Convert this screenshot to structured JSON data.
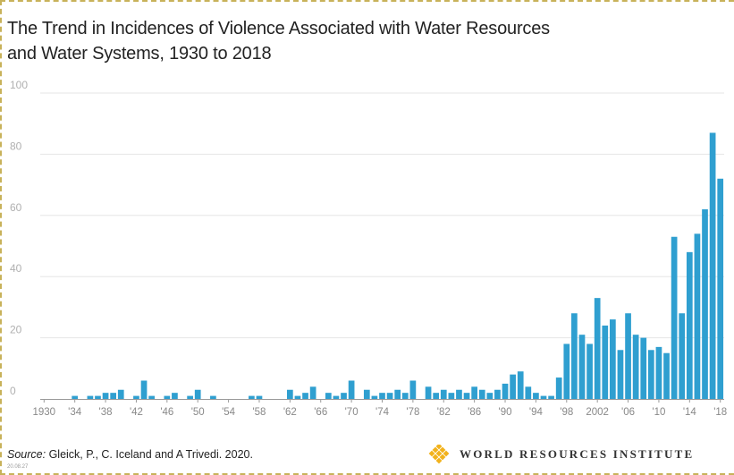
{
  "title_line1": "The Trend in Incidences of Violence Associated with Water Resources",
  "title_line2": "and Water Systems, 1930 to 2018",
  "source_label": "Source:",
  "source_text": " Gleick, P., C. Iceland and A Trivedi. 2020.",
  "corner_stamp": "20.08.27",
  "brand_name": "WORLD RESOURCES INSTITUTE",
  "colors": {
    "bar": "#2f9fd0",
    "grid": "#e6e6e6",
    "axis": "#9a9a9a",
    "logo": "#f2b21c"
  },
  "chart_data": {
    "type": "bar",
    "title": "The Trend in Incidences of Violence Associated with Water Resources and Water Systems, 1930 to 2018",
    "xlabel": "",
    "ylabel": "",
    "ylim": [
      0,
      100
    ],
    "yticks": [
      0,
      20,
      40,
      60,
      80,
      100
    ],
    "grid": true,
    "xtick_labels": [
      "1930",
      "'34",
      "'38",
      "'42",
      "'46",
      "'50",
      "'54",
      "'58",
      "'62",
      "'66",
      "'70",
      "'74",
      "'78",
      "'82",
      "'86",
      "'90",
      "'94",
      "'98",
      "2002",
      "'06",
      "'10",
      "'14",
      "'18"
    ],
    "categories": [
      1930,
      1931,
      1932,
      1933,
      1934,
      1935,
      1936,
      1937,
      1938,
      1939,
      1940,
      1941,
      1942,
      1943,
      1944,
      1945,
      1946,
      1947,
      1948,
      1949,
      1950,
      1951,
      1952,
      1953,
      1954,
      1955,
      1956,
      1957,
      1958,
      1959,
      1960,
      1961,
      1962,
      1963,
      1964,
      1965,
      1966,
      1967,
      1968,
      1969,
      1970,
      1971,
      1972,
      1973,
      1974,
      1975,
      1976,
      1977,
      1978,
      1979,
      1980,
      1981,
      1982,
      1983,
      1984,
      1985,
      1986,
      1987,
      1988,
      1989,
      1990,
      1991,
      1992,
      1993,
      1994,
      1995,
      1996,
      1997,
      1998,
      1999,
      2000,
      2001,
      2002,
      2003,
      2004,
      2005,
      2006,
      2007,
      2008,
      2009,
      2010,
      2011,
      2012,
      2013,
      2014,
      2015,
      2016,
      2017,
      2018
    ],
    "values": [
      0,
      0,
      0,
      0,
      1,
      0,
      1,
      1,
      2,
      2,
      3,
      0,
      1,
      6,
      1,
      0,
      1,
      2,
      0,
      1,
      3,
      0,
      1,
      0,
      0,
      0,
      0,
      1,
      1,
      0,
      0,
      0,
      3,
      1,
      2,
      4,
      0,
      2,
      1,
      2,
      6,
      0,
      3,
      1,
      2,
      2,
      3,
      2,
      6,
      0,
      4,
      2,
      3,
      2,
      3,
      2,
      4,
      3,
      2,
      3,
      5,
      8,
      9,
      4,
      2,
      1,
      1,
      7,
      18,
      28,
      21,
      18,
      33,
      24,
      26,
      16,
      28,
      21,
      20,
      16,
      17,
      15,
      53,
      28,
      48,
      54,
      62,
      87,
      72
    ]
  }
}
